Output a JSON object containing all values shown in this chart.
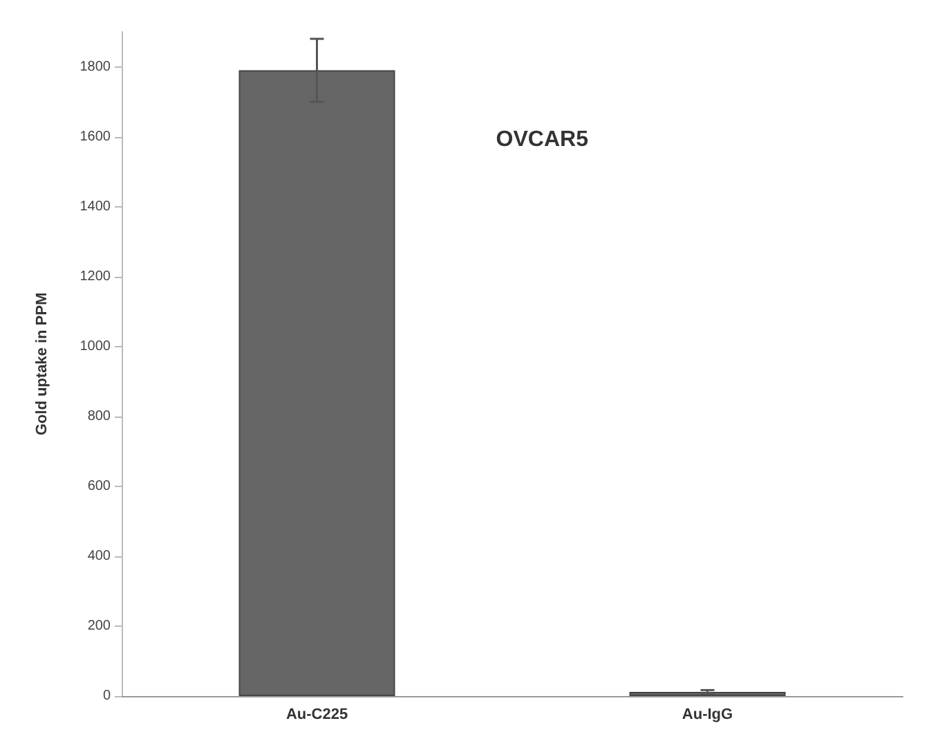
{
  "chart_data": {
    "type": "bar",
    "title": "OVCAR5",
    "ylabel": "Gold uptake in PPM",
    "categories": [
      "Au-C225",
      "Au-IgG"
    ],
    "values": [
      1790,
      12
    ],
    "errors": [
      90,
      5
    ],
    "color": "#666666",
    "ylim": [
      0,
      1900
    ],
    "yticks": [
      0,
      200,
      400,
      600,
      800,
      1000,
      1200,
      1400,
      1600,
      1800
    ],
    "grid": false
  }
}
